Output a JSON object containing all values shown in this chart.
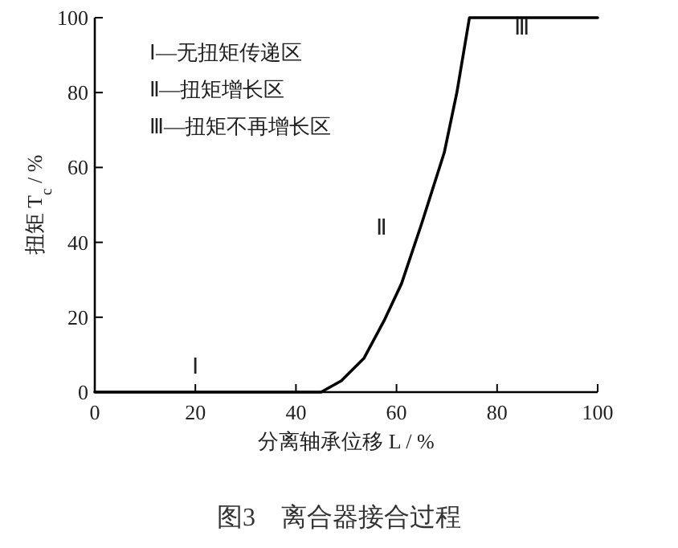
{
  "chart_data": {
    "type": "line",
    "title": "图3　离合器接合过程",
    "xlabel": "分离轴承位移 L / %",
    "ylabel": "扭矩 T$_{c}$ / %",
    "x": [
      0,
      45,
      49,
      53.5,
      57.5,
      61,
      65,
      69.5,
      72,
      74.5,
      100
    ],
    "values": [
      0,
      0,
      3,
      9,
      19,
      29,
      45,
      64,
      80,
      100,
      100
    ],
    "color": "#000000",
    "line_style": "solid",
    "xlim": [
      0,
      100
    ],
    "ylim": [
      0,
      100
    ],
    "xticks": [
      0,
      20,
      40,
      60,
      80,
      100
    ],
    "yticks": [
      0,
      20,
      40,
      60,
      80,
      100
    ],
    "annotations": [
      "Ⅰ—无扭矩传递区",
      "Ⅱ—扭矩增长区",
      "Ⅲ—扭矩不再增长区",
      "Ⅰ",
      "Ⅱ",
      "Ⅲ"
    ]
  }
}
